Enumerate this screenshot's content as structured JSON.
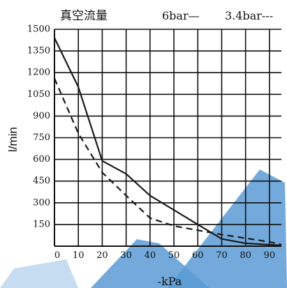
{
  "chart_data": {
    "type": "line",
    "title": "真空流量",
    "xlabel": "-kPa",
    "ylabel": "l/min",
    "x": [
      0,
      10,
      20,
      30,
      40,
      50,
      60,
      70,
      80,
      90,
      95
    ],
    "x_ticks": [
      "0",
      "10",
      "20",
      "30",
      "40",
      "50",
      "60",
      "70",
      "80",
      "90"
    ],
    "y_ticks": [
      "1500",
      "1350",
      "1200",
      "1050",
      "900",
      "750",
      "600",
      "450",
      "300",
      "150"
    ],
    "xlim": [
      0,
      95
    ],
    "ylim": [
      0,
      1500
    ],
    "grid": true,
    "legend_position": "top-right",
    "series": [
      {
        "name": "6bar",
        "legend_label": "6bar—",
        "style": "solid",
        "color": "#1a1a1a",
        "x": [
          0,
          10,
          20,
          30,
          40,
          50,
          60,
          70,
          80,
          90,
          95
        ],
        "values": [
          1440,
          1100,
          590,
          500,
          350,
          250,
          150,
          50,
          20,
          10,
          5
        ]
      },
      {
        "name": "3.4bar",
        "legend_label": "3.4bar---",
        "style": "dashed",
        "color": "#1a1a1a",
        "x": [
          0,
          10,
          20,
          30,
          40,
          50,
          60,
          70,
          80,
          90,
          95
        ],
        "values": [
          1160,
          780,
          510,
          350,
          195,
          140,
          110,
          80,
          55,
          30,
          10
        ]
      }
    ],
    "watermark_color": "#5b9bd5"
  }
}
